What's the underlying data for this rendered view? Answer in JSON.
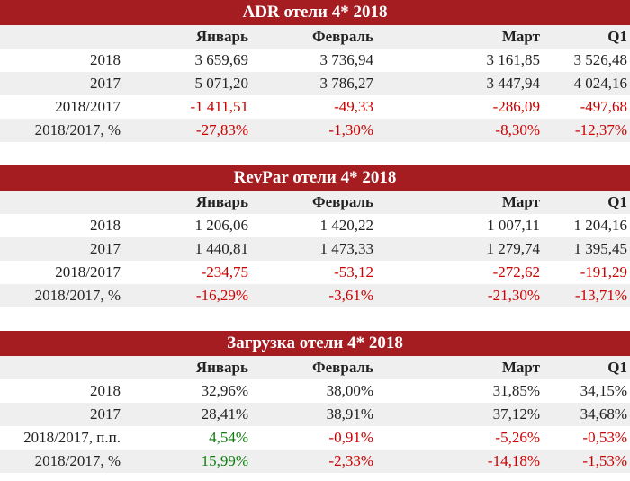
{
  "headers": [
    "Январь",
    "Февраль",
    "Март",
    "Q1"
  ],
  "tables": [
    {
      "title": "ADR отели 4* 2018",
      "rows": [
        {
          "label": "2018",
          "values": [
            "3 659,69",
            "3 736,94",
            "3 161,85",
            "3 526,48"
          ],
          "colors": [
            "",
            "",
            "",
            ""
          ]
        },
        {
          "label": "2017",
          "values": [
            "5 071,20",
            "3 786,27",
            "3 447,94",
            "4 024,16"
          ],
          "colors": [
            "",
            "",
            "",
            ""
          ]
        },
        {
          "label": "2018/2017",
          "values": [
            "-1 411,51",
            "-49,33",
            "-286,09",
            "-497,68"
          ],
          "colors": [
            "neg",
            "neg",
            "neg",
            "neg"
          ]
        },
        {
          "label": "2018/2017, %",
          "values": [
            "-27,83%",
            "-1,30%",
            "-8,30%",
            "-12,37%"
          ],
          "colors": [
            "neg",
            "neg",
            "neg",
            "neg"
          ]
        }
      ]
    },
    {
      "title": "RevPar отели 4* 2018",
      "rows": [
        {
          "label": "2018",
          "values": [
            "1 206,06",
            "1 420,22",
            "1 007,11",
            "1 204,16"
          ],
          "colors": [
            "",
            "",
            "",
            ""
          ]
        },
        {
          "label": "2017",
          "values": [
            "1 440,81",
            "1 473,33",
            "1 279,74",
            "1 395,45"
          ],
          "colors": [
            "",
            "",
            "",
            ""
          ]
        },
        {
          "label": "2018/2017",
          "values": [
            "-234,75",
            "-53,12",
            "-272,62",
            "-191,29"
          ],
          "colors": [
            "neg",
            "neg",
            "neg",
            "neg"
          ]
        },
        {
          "label": "2018/2017, %",
          "values": [
            "-16,29%",
            "-3,61%",
            "-21,30%",
            "-13,71%"
          ],
          "colors": [
            "neg",
            "neg",
            "neg",
            "neg"
          ]
        }
      ]
    },
    {
      "title": "Загрузка отели 4* 2018",
      "rows": [
        {
          "label": "2018",
          "values": [
            "32,96%",
            "38,00%",
            "31,85%",
            "34,15%"
          ],
          "colors": [
            "",
            "",
            "",
            ""
          ]
        },
        {
          "label": "2017",
          "values": [
            "28,41%",
            "38,91%",
            "37,12%",
            "34,68%"
          ],
          "colors": [
            "",
            "",
            "",
            ""
          ]
        },
        {
          "label": "2018/2017, п.п.",
          "values": [
            "4,54%",
            "-0,91%",
            "-5,26%",
            "-0,53%"
          ],
          "colors": [
            "pos",
            "neg",
            "neg",
            "neg"
          ]
        },
        {
          "label": "2018/2017, %",
          "values": [
            "15,99%",
            "-2,33%",
            "-14,18%",
            "-1,53%"
          ],
          "colors": [
            "pos",
            "neg",
            "neg",
            "neg"
          ]
        }
      ]
    }
  ]
}
